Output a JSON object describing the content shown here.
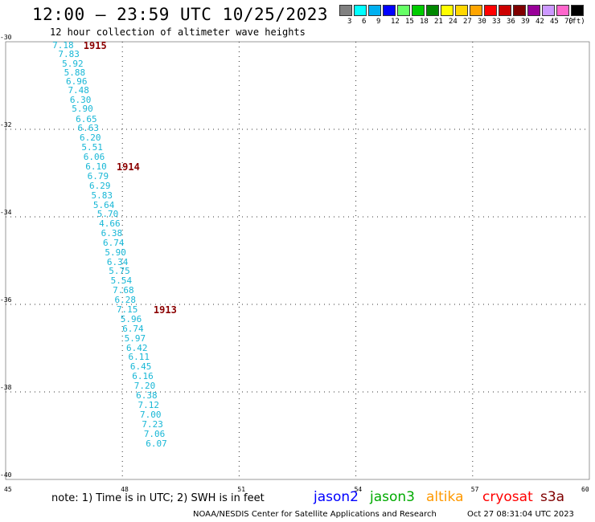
{
  "title": "12:00 – 23:59 UTC 10/25/2023",
  "subtitle": "12 hour collection of altimeter wave heights",
  "colorbar": {
    "unit": "(ft)",
    "bins": [
      {
        "label": "3",
        "color": "#808080"
      },
      {
        "label": "6",
        "color": "#00ffff"
      },
      {
        "label": "9",
        "color": "#00b0f0"
      },
      {
        "label": "12",
        "color": "#0000ff"
      },
      {
        "label": "15",
        "color": "#66ff66"
      },
      {
        "label": "18",
        "color": "#00cc00"
      },
      {
        "label": "21",
        "color": "#008800"
      },
      {
        "label": "24",
        "color": "#ffff00"
      },
      {
        "label": "27",
        "color": "#ffd700"
      },
      {
        "label": "30",
        "color": "#ffa500"
      },
      {
        "label": "33",
        "color": "#ff0000"
      },
      {
        "label": "36",
        "color": "#cc0000"
      },
      {
        "label": "39",
        "color": "#800000"
      },
      {
        "label": "42",
        "color": "#990099"
      },
      {
        "label": "45",
        "color": "#cc99ff"
      },
      {
        "label": "70",
        "color": "#ff66cc"
      },
      {
        "label": "",
        "color": "#000000"
      }
    ]
  },
  "chart_data": {
    "type": "scatter",
    "x_ticks": [
      "45",
      "48",
      "51",
      "54",
      "57",
      "60"
    ],
    "y_ticks": [
      "-30",
      "-32",
      "-34",
      "-36",
      "-38",
      "-40"
    ],
    "xlim": [
      45,
      60
    ],
    "ylim": [
      -40,
      -30
    ],
    "grid": true,
    "point_color": "#18b7d6",
    "swh_points": [
      {
        "lon": 46.2,
        "lat": -30.05,
        "swh": "7.18"
      },
      {
        "lon": 46.35,
        "lat": -30.26,
        "swh": "7.83"
      },
      {
        "lon": 46.45,
        "lat": -30.47,
        "swh": "5.92"
      },
      {
        "lon": 46.5,
        "lat": -30.68,
        "swh": "5.88"
      },
      {
        "lon": 46.55,
        "lat": -30.88,
        "swh": "6.96"
      },
      {
        "lon": 46.6,
        "lat": -31.09,
        "swh": "7.48"
      },
      {
        "lon": 46.65,
        "lat": -31.3,
        "swh": "6.30"
      },
      {
        "lon": 46.7,
        "lat": -31.51,
        "swh": "5.90"
      },
      {
        "lon": 46.8,
        "lat": -31.74,
        "swh": "6.65"
      },
      {
        "lon": 46.85,
        "lat": -31.95,
        "swh": "6.63"
      },
      {
        "lon": 46.9,
        "lat": -32.17,
        "swh": "6.20"
      },
      {
        "lon": 46.95,
        "lat": -32.39,
        "swh": "5.51"
      },
      {
        "lon": 47.0,
        "lat": -32.61,
        "swh": "6.06"
      },
      {
        "lon": 47.05,
        "lat": -32.83,
        "swh": "6.10"
      },
      {
        "lon": 47.1,
        "lat": -33.04,
        "swh": "6.79"
      },
      {
        "lon": 47.15,
        "lat": -33.26,
        "swh": "6.29"
      },
      {
        "lon": 47.2,
        "lat": -33.48,
        "swh": "5.83"
      },
      {
        "lon": 47.25,
        "lat": -33.7,
        "swh": "5.64"
      },
      {
        "lon": 47.35,
        "lat": -33.91,
        "swh": "5.70"
      },
      {
        "lon": 47.4,
        "lat": -34.13,
        "swh": "4.66"
      },
      {
        "lon": 47.45,
        "lat": -34.35,
        "swh": "6.38"
      },
      {
        "lon": 47.5,
        "lat": -34.57,
        "swh": "6.74"
      },
      {
        "lon": 47.55,
        "lat": -34.79,
        "swh": "5.90"
      },
      {
        "lon": 47.6,
        "lat": -35.0,
        "swh": "6.34"
      },
      {
        "lon": 47.65,
        "lat": -35.22,
        "swh": "5.75"
      },
      {
        "lon": 47.7,
        "lat": -35.44,
        "swh": "5.54"
      },
      {
        "lon": 47.75,
        "lat": -35.66,
        "swh": "7.68"
      },
      {
        "lon": 47.8,
        "lat": -35.88,
        "swh": "6.28"
      },
      {
        "lon": 47.85,
        "lat": -36.09,
        "swh": "7.15"
      },
      {
        "lon": 47.95,
        "lat": -36.31,
        "swh": "5.96"
      },
      {
        "lon": 48.0,
        "lat": -36.53,
        "swh": "6.74"
      },
      {
        "lon": 48.05,
        "lat": -36.75,
        "swh": "5.97"
      },
      {
        "lon": 48.1,
        "lat": -36.97,
        "swh": "6.42"
      },
      {
        "lon": 48.15,
        "lat": -37.18,
        "swh": "6.11"
      },
      {
        "lon": 48.2,
        "lat": -37.4,
        "swh": "6.45"
      },
      {
        "lon": 48.25,
        "lat": -37.62,
        "swh": "6.16"
      },
      {
        "lon": 48.3,
        "lat": -37.84,
        "swh": "7.20"
      },
      {
        "lon": 48.35,
        "lat": -38.06,
        "swh": "6.38"
      },
      {
        "lon": 48.4,
        "lat": -38.27,
        "swh": "7.12"
      },
      {
        "lon": 48.45,
        "lat": -38.49,
        "swh": "7.00"
      },
      {
        "lon": 48.5,
        "lat": -38.71,
        "swh": "7.23"
      },
      {
        "lon": 48.55,
        "lat": -38.93,
        "swh": "7.06"
      },
      {
        "lon": 48.6,
        "lat": -39.15,
        "swh": "6.07"
      }
    ],
    "time_labels": [
      {
        "lon": 47.0,
        "lat": -30.05,
        "text": "1915"
      },
      {
        "lon": 47.85,
        "lat": -32.83,
        "text": "1914"
      },
      {
        "lon": 48.8,
        "lat": -36.09,
        "text": "1913"
      }
    ]
  },
  "note": "note:  1) Time is in UTC; 2) SWH is in feet",
  "satellites": [
    {
      "name": "jason2",
      "color": "#0000ff"
    },
    {
      "name": "jason3",
      "color": "#00aa00"
    },
    {
      "name": "altika",
      "color": "#ff9900"
    },
    {
      "name": "cryosat",
      "color": "#ff0000"
    },
    {
      "name": "s3a",
      "color": "#800000"
    }
  ],
  "credit": "NOAA/NESDIS Center for Satellite Applications and Research",
  "datestamp": "Oct 27 08:31:04 UTC 2023"
}
